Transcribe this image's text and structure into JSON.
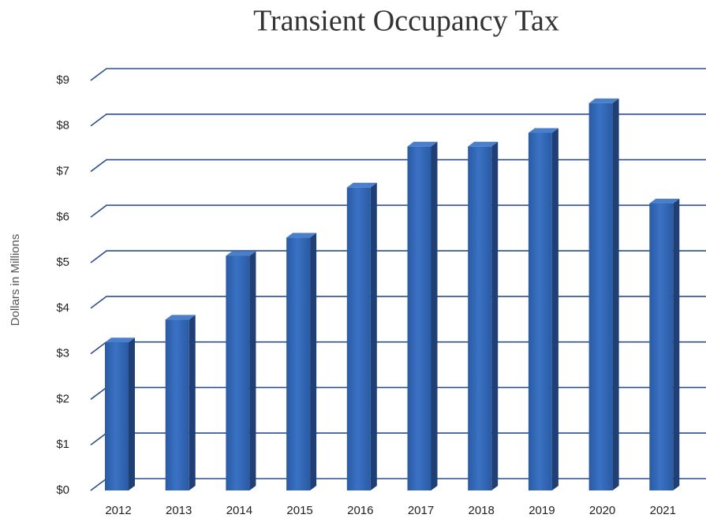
{
  "chart_data": {
    "type": "bar",
    "title": "Transient Occupancy Tax",
    "y_label": "Dollars  in Millions",
    "categories": [
      "2012",
      "2013",
      "2014",
      "2015",
      "2016",
      "2017",
      "2018",
      "2019",
      "2020",
      "2021"
    ],
    "values": [
      3.25,
      3.75,
      5.15,
      5.55,
      6.65,
      7.55,
      7.55,
      7.85,
      8.5,
      6.3
    ],
    "color": "#2e63b1",
    "ylim": [
      0,
      9
    ],
    "yticks": [
      {
        "value": 0,
        "label": "$0"
      },
      {
        "value": 1,
        "label": "$1"
      },
      {
        "value": 2,
        "label": "$2"
      },
      {
        "value": 3,
        "label": "$3"
      },
      {
        "value": 4,
        "label": "$4"
      },
      {
        "value": 5,
        "label": "$5"
      },
      {
        "value": 6,
        "label": "$6"
      },
      {
        "value": 7,
        "label": "$7"
      },
      {
        "value": 8,
        "label": "$8"
      },
      {
        "value": 9,
        "label": "$9"
      }
    ],
    "grid": true
  }
}
